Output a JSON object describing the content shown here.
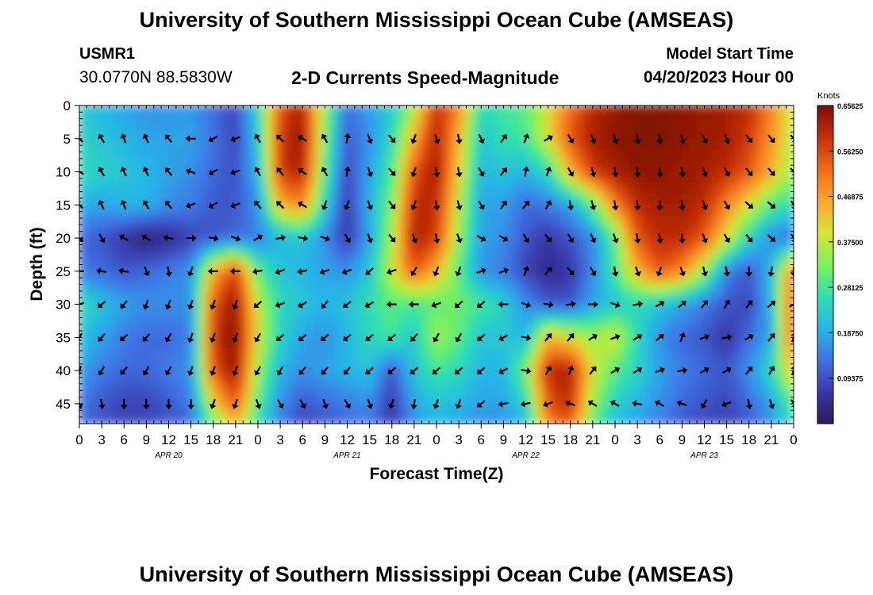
{
  "header": {
    "title": "University of Southern Mississippi Ocean Cube (AMSEAS)",
    "station": "USMR1",
    "coords": "30.0770N  88.5830W",
    "chart_subtitle": "2-D Currents Speed-Magnitude",
    "model_start_label": "Model Start Time",
    "model_start_value": "04/20/2023 Hour 00"
  },
  "footer": {
    "title": "University of Southern Mississippi Ocean Cube (AMSEAS)"
  },
  "colors": {
    "scale": [
      "#2b1a55",
      "#3a36a8",
      "#3f74e6",
      "#27b5e8",
      "#2ee0b0",
      "#7cf25a",
      "#d6e634",
      "#fca431",
      "#f26b16",
      "#c72e06",
      "#7a0f06"
    ],
    "arrow": "#000000",
    "frame": "#000000"
  },
  "chart_data": {
    "type": "heatmap",
    "title": "2-D Currents Speed-Magnitude",
    "xlabel": "Forecast Time(Z)",
    "ylabel": "Depth (ft)",
    "x_ticks": [
      "0",
      "3",
      "6",
      "9",
      "12",
      "15",
      "18",
      "21",
      "0",
      "3",
      "6",
      "9",
      "12",
      "15",
      "18",
      "21",
      "0",
      "3",
      "6",
      "9",
      "12",
      "15",
      "18",
      "21",
      "0",
      "3",
      "6",
      "9",
      "12",
      "15",
      "18",
      "21",
      "0"
    ],
    "x_hours_range": [
      0,
      96
    ],
    "date_labels": [
      {
        "label": "APR 20",
        "hour": 12
      },
      {
        "label": "APR 21",
        "hour": 36
      },
      {
        "label": "APR 22",
        "hour": 60
      },
      {
        "label": "APR 23",
        "hour": 84
      }
    ],
    "y_ticks": [
      0,
      5,
      10,
      15,
      20,
      25,
      30,
      35,
      40,
      45
    ],
    "ylim": [
      0,
      48
    ],
    "colorbar": {
      "unit": "Knots",
      "range": [
        0,
        0.65625
      ],
      "tick_labels": [
        "0.65625",
        "0.56250",
        "0.46875",
        "0.37500",
        "0.28125",
        "0.18750",
        "0.09375"
      ],
      "tick_values": [
        0.65625,
        0.5625,
        0.46875,
        0.375,
        0.28125,
        0.1875,
        0.09375
      ]
    },
    "grid": {
      "hours": [
        0,
        3,
        6,
        9,
        12,
        15,
        18,
        21,
        24,
        27,
        30,
        33,
        36,
        39,
        42,
        45,
        48,
        51,
        54,
        57,
        60,
        63,
        66,
        69,
        72,
        75,
        78,
        81,
        84,
        87,
        90,
        93,
        96
      ],
      "depths": [
        0,
        5,
        10,
        15,
        20,
        25,
        30,
        35,
        40,
        45,
        48
      ],
      "speed": [
        [
          0.22,
          0.2,
          0.18,
          0.16,
          0.16,
          0.17,
          0.12,
          0.08,
          0.25,
          0.55,
          0.62,
          0.35,
          0.12,
          0.18,
          0.22,
          0.35,
          0.6,
          0.5,
          0.25,
          0.28,
          0.3,
          0.4,
          0.52,
          0.6,
          0.63,
          0.65,
          0.65,
          0.64,
          0.63,
          0.62,
          0.6,
          0.5,
          0.38
        ],
        [
          0.24,
          0.22,
          0.2,
          0.18,
          0.18,
          0.18,
          0.13,
          0.08,
          0.22,
          0.58,
          0.64,
          0.33,
          0.1,
          0.16,
          0.25,
          0.45,
          0.62,
          0.45,
          0.22,
          0.26,
          0.28,
          0.4,
          0.55,
          0.62,
          0.64,
          0.65,
          0.65,
          0.64,
          0.63,
          0.62,
          0.58,
          0.48,
          0.36
        ],
        [
          0.25,
          0.24,
          0.22,
          0.2,
          0.18,
          0.16,
          0.12,
          0.09,
          0.2,
          0.58,
          0.62,
          0.3,
          0.08,
          0.18,
          0.28,
          0.55,
          0.63,
          0.42,
          0.2,
          0.22,
          0.2,
          0.25,
          0.45,
          0.58,
          0.62,
          0.64,
          0.64,
          0.63,
          0.62,
          0.6,
          0.55,
          0.45,
          0.34
        ],
        [
          0.2,
          0.18,
          0.2,
          0.2,
          0.16,
          0.14,
          0.1,
          0.1,
          0.16,
          0.45,
          0.5,
          0.25,
          0.06,
          0.2,
          0.32,
          0.6,
          0.6,
          0.38,
          0.18,
          0.18,
          0.12,
          0.14,
          0.18,
          0.3,
          0.5,
          0.6,
          0.62,
          0.62,
          0.6,
          0.5,
          0.4,
          0.3,
          0.25
        ],
        [
          0.12,
          0.1,
          0.06,
          0.02,
          0.04,
          0.08,
          0.1,
          0.12,
          0.14,
          0.2,
          0.22,
          0.16,
          0.06,
          0.18,
          0.35,
          0.62,
          0.58,
          0.35,
          0.18,
          0.16,
          0.1,
          0.06,
          0.1,
          0.15,
          0.3,
          0.55,
          0.6,
          0.6,
          0.55,
          0.4,
          0.25,
          0.15,
          0.12
        ],
        [
          0.14,
          0.12,
          0.1,
          0.12,
          0.14,
          0.16,
          0.45,
          0.58,
          0.3,
          0.22,
          0.2,
          0.18,
          0.16,
          0.22,
          0.38,
          0.55,
          0.45,
          0.3,
          0.16,
          0.14,
          0.08,
          0.04,
          0.06,
          0.15,
          0.28,
          0.45,
          0.55,
          0.5,
          0.35,
          0.15,
          0.1,
          0.2,
          0.55
        ],
        [
          0.26,
          0.22,
          0.18,
          0.16,
          0.16,
          0.16,
          0.55,
          0.64,
          0.38,
          0.25,
          0.22,
          0.2,
          0.22,
          0.26,
          0.3,
          0.28,
          0.3,
          0.32,
          0.28,
          0.24,
          0.16,
          0.1,
          0.1,
          0.18,
          0.22,
          0.25,
          0.22,
          0.18,
          0.14,
          0.1,
          0.08,
          0.2,
          0.6
        ],
        [
          0.22,
          0.18,
          0.14,
          0.12,
          0.12,
          0.14,
          0.58,
          0.65,
          0.4,
          0.24,
          0.18,
          0.16,
          0.2,
          0.25,
          0.28,
          0.22,
          0.36,
          0.3,
          0.22,
          0.22,
          0.2,
          0.45,
          0.4,
          0.35,
          0.4,
          0.25,
          0.16,
          0.12,
          0.1,
          0.06,
          0.12,
          0.18,
          0.58
        ],
        [
          0.18,
          0.14,
          0.12,
          0.12,
          0.14,
          0.16,
          0.55,
          0.64,
          0.35,
          0.2,
          0.16,
          0.18,
          0.2,
          0.22,
          0.1,
          0.22,
          0.28,
          0.25,
          0.2,
          0.2,
          0.32,
          0.6,
          0.62,
          0.4,
          0.3,
          0.24,
          0.18,
          0.14,
          0.12,
          0.1,
          0.16,
          0.25,
          0.45
        ],
        [
          0.14,
          0.1,
          0.08,
          0.08,
          0.1,
          0.14,
          0.4,
          0.55,
          0.3,
          0.16,
          0.1,
          0.12,
          0.14,
          0.16,
          0.06,
          0.18,
          0.22,
          0.2,
          0.18,
          0.18,
          0.24,
          0.55,
          0.6,
          0.35,
          0.24,
          0.2,
          0.16,
          0.12,
          0.1,
          0.08,
          0.12,
          0.18,
          0.3
        ],
        [
          0.12,
          0.1,
          0.08,
          0.08,
          0.1,
          0.12,
          0.3,
          0.45,
          0.26,
          0.14,
          0.08,
          0.1,
          0.12,
          0.14,
          0.06,
          0.16,
          0.2,
          0.18,
          0.16,
          0.16,
          0.2,
          0.5,
          0.55,
          0.3,
          0.2,
          0.18,
          0.14,
          0.1,
          0.08,
          0.08,
          0.1,
          0.16,
          0.26
        ]
      ],
      "direction": [
        [
          0,
          0,
          0,
          0,
          0,
          0,
          0,
          0,
          0,
          0,
          0,
          0,
          0,
          0,
          0,
          0,
          0,
          0,
          0,
          0,
          0,
          0,
          0,
          0,
          0,
          0,
          0,
          0,
          0,
          0,
          0,
          0,
          0
        ],
        [
          315,
          330,
          340,
          335,
          320,
          270,
          240,
          250,
          330,
          315,
          300,
          330,
          10,
          160,
          140,
          200,
          160,
          170,
          155,
          35,
          20,
          60,
          150,
          160,
          165,
          170,
          175,
          165,
          150,
          160,
          140,
          140,
          140
        ],
        [
          300,
          330,
          335,
          335,
          320,
          290,
          240,
          250,
          330,
          320,
          305,
          330,
          10,
          160,
          140,
          200,
          170,
          170,
          150,
          40,
          10,
          20,
          150,
          165,
          170,
          175,
          175,
          170,
          160,
          150,
          140,
          140,
          140
        ],
        [
          315,
          335,
          340,
          330,
          320,
          250,
          240,
          250,
          320,
          315,
          300,
          200,
          200,
          160,
          140,
          200,
          170,
          165,
          150,
          35,
          40,
          30,
          170,
          165,
          170,
          175,
          180,
          175,
          160,
          150,
          130,
          130,
          150
        ],
        [
          135,
          150,
          300,
          300,
          280,
          90,
          100,
          110,
          60,
          80,
          100,
          110,
          150,
          160,
          140,
          160,
          170,
          160,
          120,
          120,
          150,
          140,
          150,
          155,
          160,
          170,
          170,
          175,
          160,
          150,
          140,
          130,
          150
        ],
        [
          270,
          280,
          280,
          160,
          170,
          200,
          270,
          270,
          260,
          250,
          260,
          250,
          250,
          230,
          250,
          210,
          200,
          200,
          70,
          70,
          20,
          40,
          140,
          150,
          170,
          160,
          200,
          160,
          165,
          170,
          180,
          190,
          180
        ],
        [
          250,
          230,
          220,
          200,
          200,
          200,
          200,
          200,
          230,
          250,
          240,
          220,
          230,
          240,
          270,
          270,
          250,
          230,
          230,
          270,
          110,
          100,
          80,
          90,
          110,
          80,
          60,
          50,
          40,
          30,
          40,
          50,
          60
        ],
        [
          210,
          220,
          230,
          220,
          210,
          200,
          200,
          200,
          210,
          230,
          230,
          230,
          230,
          230,
          230,
          220,
          210,
          210,
          230,
          240,
          100,
          40,
          40,
          60,
          70,
          60,
          50,
          20,
          70,
          80,
          60,
          40,
          20
        ],
        [
          200,
          210,
          220,
          210,
          210,
          200,
          200,
          200,
          210,
          210,
          220,
          220,
          220,
          230,
          230,
          230,
          230,
          230,
          230,
          240,
          100,
          30,
          20,
          40,
          60,
          60,
          70,
          80,
          60,
          60,
          40,
          30,
          20
        ],
        [
          160,
          170,
          180,
          180,
          180,
          180,
          200,
          200,
          160,
          150,
          150,
          160,
          150,
          160,
          200,
          190,
          200,
          200,
          230,
          260,
          260,
          250,
          290,
          300,
          300,
          280,
          300,
          290,
          210,
          250,
          170,
          160,
          150
        ],
        [
          0,
          0,
          0,
          0,
          0,
          0,
          0,
          0,
          0,
          0,
          0,
          0,
          0,
          0,
          0,
          0,
          0,
          0,
          0,
          0,
          0,
          0,
          0,
          0,
          0,
          0,
          0,
          0,
          0,
          0,
          0,
          0,
          0
        ]
      ]
    }
  }
}
